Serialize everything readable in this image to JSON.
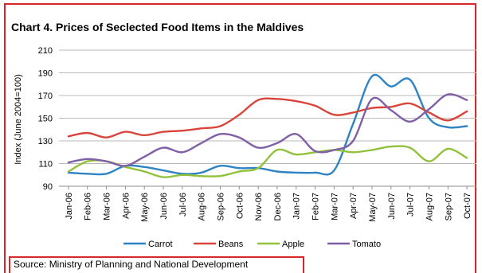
{
  "chart_title": "Chart 4. Prices of Seclected Food Items in the Maldives",
  "source_text": "Source: Ministry of Planning and National Development",
  "chart_data": {
    "type": "line",
    "title": "Chart 4. Prices of Seclected Food Items in the Maldives",
    "xlabel": "",
    "ylabel": "Index (June 2004=100)",
    "ylim": [
      90,
      210
    ],
    "yticks": [
      90,
      110,
      130,
      150,
      170,
      190,
      210
    ],
    "grid": true,
    "legend_position": "bottom",
    "x": [
      "Jan-06",
      "Feb-06",
      "Mar-06",
      "Apr-06",
      "May-06",
      "Jun-06",
      "Jul-06",
      "Aug-06",
      "Sep-06",
      "Oct-06",
      "Nov-06",
      "Dec-06",
      "Jan-07",
      "Feb-07",
      "Mar-07",
      "Apr-07",
      "May-07",
      "Jun-07",
      "Jul-07",
      "Aug-07",
      "Sep-07",
      "Oct-07"
    ],
    "series": [
      {
        "name": "Carrot",
        "color": "#2e83c4",
        "values": [
          102,
          101,
          101,
          108,
          107,
          104,
          101,
          102,
          108,
          106,
          106,
          103,
          102,
          102,
          104,
          145,
          187,
          178,
          184,
          150,
          142,
          143
        ]
      },
      {
        "name": "Beans",
        "color": "#d9443b",
        "values": [
          134,
          137,
          133,
          138,
          135,
          138,
          139,
          141,
          143,
          153,
          166,
          167,
          165,
          161,
          153,
          155,
          159,
          160,
          163,
          155,
          148,
          156
        ]
      },
      {
        "name": "Apple",
        "color": "#92c13b",
        "values": [
          103,
          112,
          112,
          107,
          103,
          98,
          100,
          99,
          99,
          103,
          106,
          122,
          118,
          120,
          122,
          120,
          122,
          125,
          124,
          112,
          123,
          115
        ]
      },
      {
        "name": "Tomato",
        "color": "#7f5fa5",
        "values": [
          111,
          114,
          112,
          108,
          116,
          124,
          120,
          128,
          136,
          133,
          124,
          128,
          136,
          121,
          122,
          130,
          167,
          157,
          147,
          158,
          171,
          166
        ]
      }
    ]
  }
}
